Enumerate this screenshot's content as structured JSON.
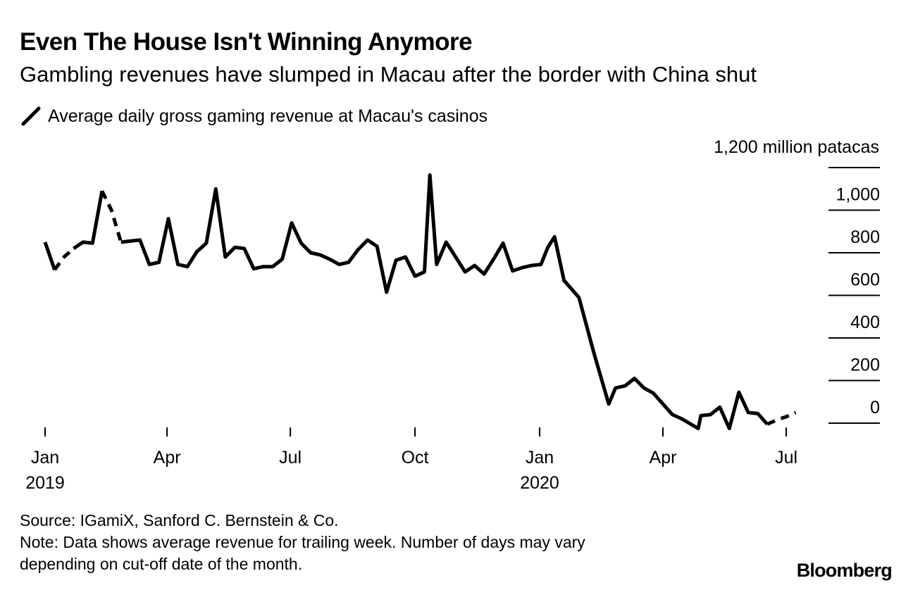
{
  "header": {
    "title": "Even The House Isn't Winning Anymore",
    "subtitle": "Gambling revenues have slumped in Macau after the border with China shut"
  },
  "footer": {
    "source": "Source: IGamiX, Sanford C. Bernstein & Co.",
    "note_line1": "Note: Data shows average revenue for trailing week. Number of days may vary",
    "note_line2": "depending on cut-off date of the month.",
    "brand": "Bloomberg"
  },
  "chart_data": {
    "type": "line",
    "title": "Even The House Isn't Winning Anymore",
    "subtitle": "Gambling revenues have slumped in Macau after the border with China shut",
    "legend": "Average daily gross gaming revenue at Macau's casinos",
    "legend_position": "top-left",
    "ylabel": "",
    "y_unit_label": "1,200 million patacas",
    "ylim": [
      0,
      1200
    ],
    "yticks": [
      {
        "value": 1200,
        "label": ""
      },
      {
        "value": 1000,
        "label": "1,000"
      },
      {
        "value": 800,
        "label": "800"
      },
      {
        "value": 600,
        "label": "600"
      },
      {
        "value": 400,
        "label": "400"
      },
      {
        "value": 200,
        "label": "200"
      },
      {
        "value": 0,
        "label": "0"
      }
    ],
    "y_axis_side": "right",
    "grid": false,
    "xlim": [
      "2019-01-01",
      "2020-07-15"
    ],
    "xticks": [
      {
        "date": "2019-01-01",
        "label": "Jan",
        "sublabel": "2019"
      },
      {
        "date": "2019-04-01",
        "label": "Apr",
        "sublabel": ""
      },
      {
        "date": "2019-07-01",
        "label": "Jul",
        "sublabel": ""
      },
      {
        "date": "2019-10-01",
        "label": "Oct",
        "sublabel": ""
      },
      {
        "date": "2020-01-01",
        "label": "Jan",
        "sublabel": "2020"
      },
      {
        "date": "2020-04-01",
        "label": "Apr",
        "sublabel": ""
      },
      {
        "date": "2020-07-01",
        "label": "Jul",
        "sublabel": ""
      }
    ],
    "series": [
      {
        "name": "Average daily gross gaming revenue at Macau's casinos",
        "color": "#000000",
        "points": [
          {
            "x": "2019-01-01",
            "y": 850
          },
          {
            "x": "2019-01-08",
            "y": 720
          },
          {
            "x": "2019-01-15",
            "y": 780,
            "dashed": true
          },
          {
            "x": "2019-01-22",
            "y": 820,
            "dashed": true
          },
          {
            "x": "2019-01-29",
            "y": 850
          },
          {
            "x": "2019-02-05",
            "y": 845
          },
          {
            "x": "2019-02-12",
            "y": 1090
          },
          {
            "x": "2019-02-19",
            "y": 1000,
            "dashed": true
          },
          {
            "x": "2019-02-26",
            "y": 850,
            "dashed": true
          },
          {
            "x": "2019-03-05",
            "y": 855
          },
          {
            "x": "2019-03-12",
            "y": 860
          },
          {
            "x": "2019-03-19",
            "y": 745
          },
          {
            "x": "2019-03-26",
            "y": 755
          },
          {
            "x": "2019-04-02",
            "y": 960
          },
          {
            "x": "2019-04-09",
            "y": 745
          },
          {
            "x": "2019-04-16",
            "y": 735
          },
          {
            "x": "2019-04-23",
            "y": 805
          },
          {
            "x": "2019-04-30",
            "y": 845
          },
          {
            "x": "2019-05-07",
            "y": 1100
          },
          {
            "x": "2019-05-14",
            "y": 780
          },
          {
            "x": "2019-05-21",
            "y": 825
          },
          {
            "x": "2019-05-28",
            "y": 820
          },
          {
            "x": "2019-06-04",
            "y": 725
          },
          {
            "x": "2019-06-11",
            "y": 735
          },
          {
            "x": "2019-06-18",
            "y": 735
          },
          {
            "x": "2019-06-25",
            "y": 770
          },
          {
            "x": "2019-07-02",
            "y": 940
          },
          {
            "x": "2019-07-09",
            "y": 845
          },
          {
            "x": "2019-07-16",
            "y": 800
          },
          {
            "x": "2019-07-23",
            "y": 790
          },
          {
            "x": "2019-07-30",
            "y": 770
          },
          {
            "x": "2019-08-06",
            "y": 745
          },
          {
            "x": "2019-08-13",
            "y": 755
          },
          {
            "x": "2019-08-20",
            "y": 815
          },
          {
            "x": "2019-08-27",
            "y": 860
          },
          {
            "x": "2019-09-03",
            "y": 830
          },
          {
            "x": "2019-09-10",
            "y": 615
          },
          {
            "x": "2019-09-17",
            "y": 765
          },
          {
            "x": "2019-09-24",
            "y": 780
          },
          {
            "x": "2019-10-01",
            "y": 690
          },
          {
            "x": "2019-10-08",
            "y": 710
          },
          {
            "x": "2019-10-12",
            "y": 1165
          },
          {
            "x": "2019-10-17",
            "y": 745
          },
          {
            "x": "2019-10-24",
            "y": 850
          },
          {
            "x": "2019-11-07",
            "y": 710
          },
          {
            "x": "2019-11-14",
            "y": 740
          },
          {
            "x": "2019-11-21",
            "y": 700
          },
          {
            "x": "2019-11-28",
            "y": 770
          },
          {
            "x": "2019-12-05",
            "y": 845
          },
          {
            "x": "2019-12-12",
            "y": 715
          },
          {
            "x": "2019-12-19",
            "y": 730
          },
          {
            "x": "2019-12-26",
            "y": 740
          },
          {
            "x": "2020-01-02",
            "y": 745
          },
          {
            "x": "2020-01-07",
            "y": 825
          },
          {
            "x": "2020-01-12",
            "y": 875
          },
          {
            "x": "2020-01-19",
            "y": 670
          },
          {
            "x": "2020-01-30",
            "y": 590
          },
          {
            "x": "2020-02-10",
            "y": 330
          },
          {
            "x": "2020-02-21",
            "y": 90
          },
          {
            "x": "2020-02-26",
            "y": 165
          },
          {
            "x": "2020-03-04",
            "y": 175
          },
          {
            "x": "2020-03-11",
            "y": 210
          },
          {
            "x": "2020-03-18",
            "y": 165
          },
          {
            "x": "2020-03-25",
            "y": 140
          },
          {
            "x": "2020-04-01",
            "y": 90
          },
          {
            "x": "2020-04-08",
            "y": 40
          },
          {
            "x": "2020-04-15",
            "y": 20
          },
          {
            "x": "2020-04-27",
            "y": -25
          },
          {
            "x": "2020-04-29",
            "y": 35
          },
          {
            "x": "2020-05-06",
            "y": 40
          },
          {
            "x": "2020-05-13",
            "y": 75
          },
          {
            "x": "2020-05-20",
            "y": -25
          },
          {
            "x": "2020-05-27",
            "y": 145
          },
          {
            "x": "2020-06-03",
            "y": 50
          },
          {
            "x": "2020-06-10",
            "y": 45
          },
          {
            "x": "2020-06-17",
            "y": -5
          },
          {
            "x": "2020-06-24",
            "y": 15,
            "dashed": true
          },
          {
            "x": "2020-07-01",
            "y": 30,
            "dashed": true
          },
          {
            "x": "2020-07-08",
            "y": 50,
            "dashed": true
          }
        ]
      }
    ]
  }
}
